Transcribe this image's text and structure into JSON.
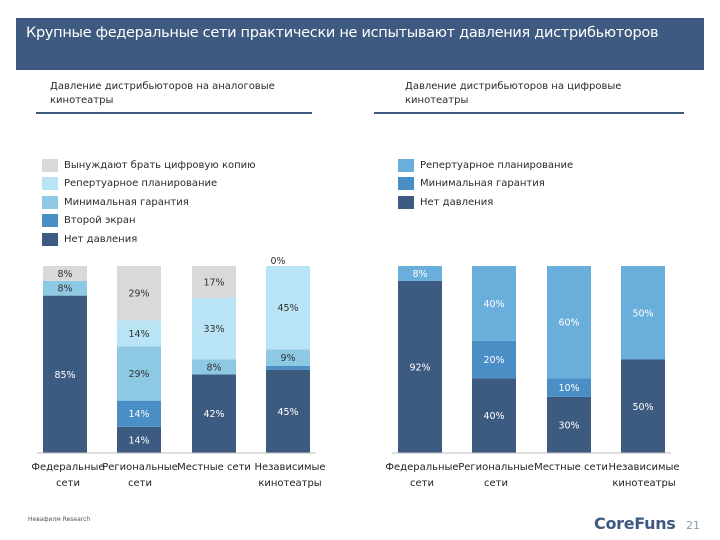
{
  "slide": {
    "title": "Крупные федеральные сети практически не испытывают давления дистрибьюторов",
    "source": "Невафилм Research",
    "logo": "CoreFuns",
    "page_number": "21"
  },
  "colors": {
    "title_bg": "#3f5a80",
    "light_gray": "#d9d9d9",
    "light_blue": "#b9e4f5",
    "sky_blue": "#8ec9e3",
    "mid_blue": "#4a8ec6",
    "dark_blue": "#3d5b80"
  },
  "chart_data": [
    {
      "type": "bar",
      "stacked": true,
      "title": "Давление дистрибьюторов на аналоговые кинотеатры",
      "categories": [
        "Федеральные сети",
        "Региональные сети",
        "Местные сети",
        "Независимые кинотеатры"
      ],
      "categories_display": [
        [
          "Федеральные",
          "сети"
        ],
        [
          "Региональные",
          "сети"
        ],
        [
          "Местные сети",
          ""
        ],
        [
          "Независимые",
          "кинотеатры"
        ]
      ],
      "legend": [
        "Вынуждают брать цифровую копию",
        "Репертуарное планирование",
        "Минимальная гарантия",
        "Второй экран",
        "Нет давления"
      ],
      "series": [
        {
          "name": "Нет давления",
          "color": "#3d5b80",
          "values": [
            85,
            14,
            42,
            45
          ],
          "labels": [
            "85%",
            "14%",
            "42%",
            "45%"
          ]
        },
        {
          "name": "Второй экран",
          "color": "#4a8ec6",
          "values": [
            0,
            14,
            0,
            2
          ],
          "labels": [
            "0%",
            "14%",
            "0%",
            "2%"
          ]
        },
        {
          "name": "Минимальная гарантия",
          "color": "#8ec9e3",
          "values": [
            8,
            29,
            8,
            9
          ],
          "labels": [
            "8%",
            "29%",
            "8%",
            "9%"
          ]
        },
        {
          "name": "Репертуарное планирование",
          "color": "#b9e4f5",
          "values": [
            0,
            14,
            33,
            45
          ],
          "labels": [
            "0%",
            "14%",
            "33%",
            "45%"
          ]
        },
        {
          "name": "Вынуждают брать цифровую копию",
          "color": "#d9d9d9",
          "values": [
            8,
            29,
            17,
            0
          ],
          "labels": [
            "8%",
            "29%",
            "17%",
            "0%"
          ]
        }
      ]
    },
    {
      "type": "bar",
      "stacked": true,
      "title": "Давление дистрибьюторов на цифровые кинотеатры",
      "categories": [
        "Федеральные сети",
        "Региональные сети",
        "Местные сети",
        "Независимые кинотеатры"
      ],
      "categories_display": [
        [
          "Федеральные",
          "сети"
        ],
        [
          "Региональные",
          "сети"
        ],
        [
          "Местные сети",
          ""
        ],
        [
          "Независимые",
          "кинотеатры"
        ]
      ],
      "legend": [
        "Репертуарное планирование",
        "Минимальная гарантия",
        "Нет давления"
      ],
      "series": [
        {
          "name": "Нет давления",
          "color": "#3d5b80",
          "values": [
            92,
            40,
            30,
            50
          ],
          "labels": [
            "92%",
            "40%",
            "30%",
            "50%"
          ]
        },
        {
          "name": "Минимальная гарантия",
          "color": "#4a8ec6",
          "values": [
            0,
            20,
            10,
            0
          ],
          "labels": [
            "0%",
            "20%",
            "10%",
            "0%"
          ]
        },
        {
          "name": "Репертуарное планирование",
          "color": "#6aaedb",
          "values": [
            8,
            40,
            60,
            50
          ],
          "labels": [
            "8%",
            "40%",
            "60%",
            "50%"
          ]
        }
      ]
    }
  ]
}
